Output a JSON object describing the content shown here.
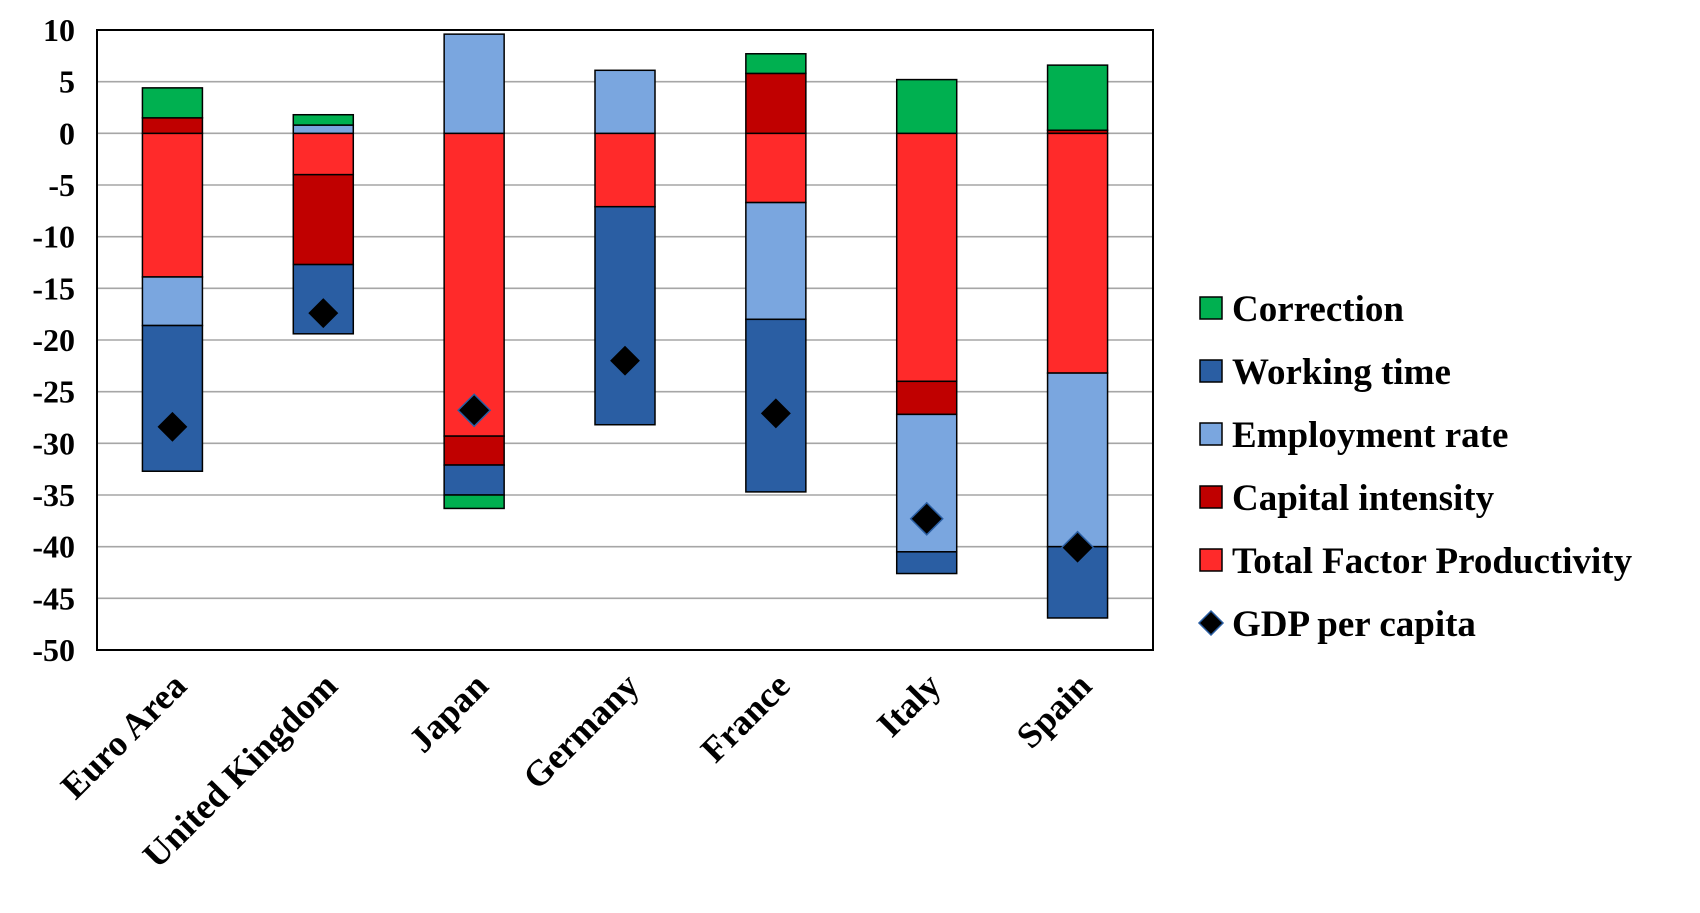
{
  "chart_data": {
    "type": "bar",
    "stacked": true,
    "categories": [
      "Euro Area",
      "United Kingdom",
      "Japan",
      "Germany",
      "France",
      "Italy",
      "Spain"
    ],
    "ylim": [
      -50,
      10
    ],
    "yticks": [
      "10",
      "5",
      "0",
      "-5",
      "-10",
      "-15",
      "-20",
      "-25",
      "-30",
      "-35",
      "-40",
      "-45",
      "-50"
    ],
    "grid": true,
    "legend_position": "right",
    "series": [
      {
        "name": "Total Factor Productivity",
        "color": "#ff2a2a",
        "values": [
          -13.9,
          -4.0,
          -29.3,
          -7.1,
          -6.7,
          -24.0,
          -23.2
        ]
      },
      {
        "name": "Capital intensity",
        "color": "#c00000",
        "values": [
          1.5,
          -8.7,
          -2.8,
          0.0,
          5.8,
          -3.2,
          0.3
        ]
      },
      {
        "name": "Employment rate",
        "color": "#7aa6df",
        "values": [
          -4.7,
          0.8,
          9.6,
          6.1,
          -11.3,
          -13.3,
          -16.8
        ]
      },
      {
        "name": "Working time",
        "color": "#2a5ea3",
        "values": [
          -14.1,
          -6.7,
          -2.9,
          -21.1,
          -16.7,
          -2.1,
          -6.9
        ]
      },
      {
        "name": "Correction",
        "color": "#00b050",
        "values": [
          2.9,
          1.0,
          -1.3,
          0.0,
          1.9,
          5.2,
          6.3
        ]
      }
    ],
    "markers": {
      "name": "GDP per capita",
      "color": "#000000",
      "values": [
        -28.4,
        -17.4,
        -26.8,
        -22.0,
        -27.1,
        -37.3,
        -40.1
      ]
    },
    "legend": [
      "Correction",
      "Working time",
      "Employment rate",
      "Capital intensity",
      "Total Factor Productivity",
      "GDP per capita"
    ]
  }
}
